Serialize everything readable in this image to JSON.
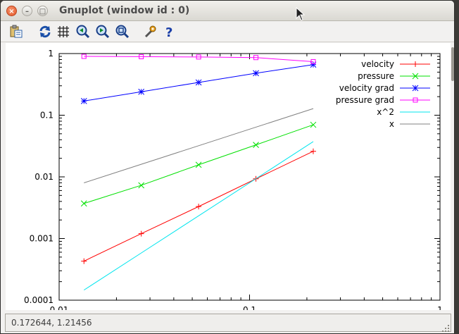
{
  "window": {
    "title": "Gnuplot (window id : 0)",
    "close_glyph": "×",
    "min_glyph": "–",
    "max_glyph": "□"
  },
  "toolbar": {
    "icons": [
      "copy-clipboard-icon",
      "replot-icon",
      "grid-icon",
      "zoom-prev-icon",
      "zoom-next-icon",
      "autoscale-icon",
      "settings-icon",
      "help-icon"
    ]
  },
  "status": {
    "coords": "0.172644,  1.21456"
  },
  "colors": {
    "velocity": "#ff0000",
    "pressure": "#00e000",
    "velocity_grad": "#0000ff",
    "pressure_grad": "#ff00ff",
    "x2": "#00e5ee",
    "x": "#808080"
  },
  "chart_data": {
    "type": "line",
    "xscale": "log",
    "yscale": "log",
    "xlim": [
      0.01,
      1
    ],
    "ylim": [
      0.0001,
      1
    ],
    "xticks": [
      "0.01",
      "0.1",
      "1"
    ],
    "yticks": [
      "0.0001",
      "0.001",
      "0.01",
      "0.1",
      "1"
    ],
    "legend_position": "top-right",
    "grid": false,
    "x": [
      0.0135,
      0.027,
      0.054,
      0.108,
      0.216
    ],
    "series": [
      {
        "name": "velocity",
        "marker": "plus",
        "color": "#ff0000",
        "values": [
          0.00043,
          0.0012,
          0.0033,
          0.0093,
          0.026
        ]
      },
      {
        "name": "pressure",
        "marker": "cross",
        "color": "#00e000",
        "values": [
          0.0037,
          0.0073,
          0.0157,
          0.033,
          0.07
        ]
      },
      {
        "name": "velocity grad",
        "marker": "star",
        "color": "#0000ff",
        "values": [
          0.17,
          0.24,
          0.34,
          0.48,
          0.66
        ]
      },
      {
        "name": "pressure grad",
        "marker": "square",
        "color": "#ff00ff",
        "values": [
          0.9,
          0.89,
          0.88,
          0.86,
          0.74
        ]
      },
      {
        "name": "x^2",
        "marker": "none",
        "color": "#00e5ee",
        "values": [
          0.000146,
          0.000583,
          0.00233,
          0.00933,
          0.0373
        ]
      },
      {
        "name": "x",
        "marker": "none",
        "color": "#808080",
        "values": [
          0.008,
          0.016,
          0.032,
          0.064,
          0.128
        ]
      }
    ]
  }
}
